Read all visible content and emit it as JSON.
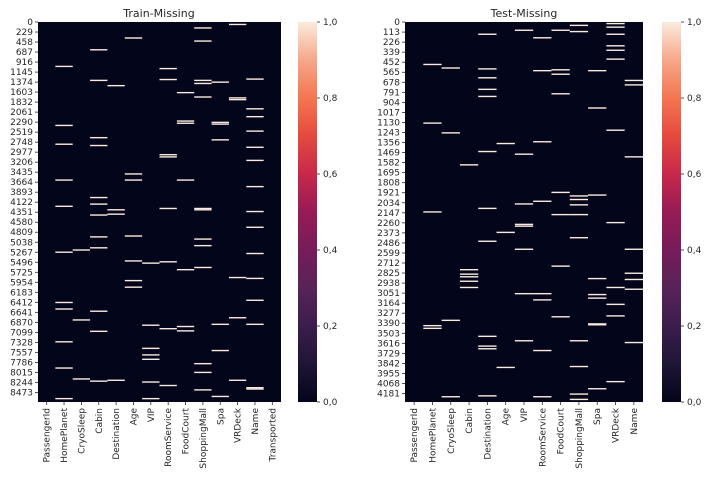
{
  "colors": {
    "missing_low": "#03051a",
    "missing_high": "#faebdd",
    "colormap": "rocket"
  },
  "chart_data": [
    {
      "type": "heatmap",
      "title": "Train-Missing",
      "xlabel": "",
      "ylabel": "",
      "value_range": [
        0,
        1
      ],
      "columns": [
        "PassengerId",
        "HomePlanet",
        "CryoSleep",
        "Cabin",
        "Destination",
        "Age",
        "VIP",
        "RoomService",
        "FoodCourt",
        "ShoppingMall",
        "Spa",
        "VRDeck",
        "Name",
        "Transported"
      ],
      "n_rows": 8693,
      "y_tick_labels": [
        "0",
        "229",
        "458",
        "687",
        "916",
        "1145",
        "1374",
        "1603",
        "1832",
        "2061",
        "2290",
        "2519",
        "2748",
        "2977",
        "3206",
        "3435",
        "3664",
        "3893",
        "4122",
        "4351",
        "4580",
        "4809",
        "5038",
        "5267",
        "5496",
        "5725",
        "5954",
        "6183",
        "6412",
        "6641",
        "6870",
        "7099",
        "7328",
        "7557",
        "7786",
        "8015",
        "8244",
        "8473"
      ],
      "colorbar_ticks": [
        "0,0",
        "0,2",
        "0,4",
        "0,6",
        "0,8",
        "1,0"
      ],
      "missing_rows": {
        "HomePlanet": [
          1000,
          2350,
          2780,
          3600,
          4200,
          5250,
          6400,
          6550,
          7300,
          7900,
          8600
        ],
        "CryoSleep": [
          5200,
          6800,
          8150
        ],
        "Cabin": [
          620,
          1320,
          2630,
          2810,
          4000,
          4150,
          4400,
          4900,
          5150,
          6600,
          7060,
          8200
        ],
        "Destination": [
          1440,
          4280,
          4380,
          8180
        ],
        "Age": [
          350,
          3460,
          3600,
          4880,
          5450,
          5900,
          6050
        ],
        "VIP": [
          5500,
          6920,
          7450,
          7600,
          7700,
          8220,
          8600
        ],
        "RoomService": [
          1050,
          1300,
          3020,
          3070,
          4250,
          5470,
          7000,
          8300
        ],
        "FoodCourt": [
          1600,
          2250,
          2300,
          3600,
          5650,
          6950,
          7050
        ],
        "ShoppingMall": [
          120,
          420,
          1320,
          1390,
          1700,
          4250,
          4280,
          4950,
          5100,
          5600,
          7800,
          8000,
          8400
        ],
        "Spa": [
          1360,
          2280,
          2320,
          2680,
          6900,
          7500,
          8550
        ],
        "VRDeck": [
          40,
          1720,
          1760,
          5830,
          6750,
          8180
        ],
        "Name": [
          1290,
          1970,
          2150,
          2480,
          2850,
          3150,
          3750,
          4320,
          4680,
          5280,
          5850,
          6350,
          6900,
          8350,
          8380
        ],
        "Transported": []
      }
    },
    {
      "type": "heatmap",
      "title": "Test-Missing",
      "xlabel": "",
      "ylabel": "",
      "value_range": [
        0,
        1
      ],
      "columns": [
        "PassengerId",
        "HomePlanet",
        "CryoSleep",
        "Cabin",
        "Destination",
        "Age",
        "VIP",
        "RoomService",
        "FoodCourt",
        "ShoppingMall",
        "Spa",
        "VRDeck",
        "Name"
      ],
      "n_rows": 4277,
      "y_tick_labels": [
        "0",
        "113",
        "226",
        "339",
        "452",
        "565",
        "678",
        "791",
        "904",
        "1017",
        "1130",
        "1243",
        "1356",
        "1469",
        "1582",
        "1695",
        "1808",
        "1921",
        "2034",
        "2147",
        "2260",
        "2373",
        "2486",
        "2599",
        "2712",
        "2825",
        "2938",
        "3051",
        "3164",
        "3277",
        "3390",
        "3503",
        "3616",
        "3729",
        "3842",
        "3955",
        "4068",
        "4181"
      ],
      "colorbar_ticks": [
        "0,0",
        "0,2",
        "0,4",
        "0,6",
        "0,8",
        "1,0"
      ],
      "missing_rows": {
        "HomePlanet": [
          470,
          1130,
          2130,
          3410,
          3440
        ],
        "CryoSleep": [
          510,
          1240,
          3350,
          4210
        ],
        "Cabin": [
          1600,
          2780,
          2830,
          2860,
          2910,
          2980
        ],
        "Destination": [
          130,
          520,
          620,
          750,
          830,
          1450,
          2090,
          2460,
          3530,
          3640,
          3670,
          4200
        ],
        "Age": [
          1360,
          2360,
          3880
        ],
        "VIP": [
          85,
          1480,
          2040,
          2270,
          2290,
          2550,
          3050,
          3580
        ],
        "RoomService": [
          170,
          540,
          1340,
          2010,
          3050,
          3120,
          3690,
          4210
        ],
        "FoodCourt": [
          85,
          530,
          580,
          800,
          1910,
          2160,
          2740,
          3310
        ],
        "ShoppingMall": [
          30,
          100,
          1950,
          1990,
          2050,
          2160,
          2420,
          3580,
          3870,
          4180,
          4240
        ],
        "Spa": [
          540,
          960,
          1940,
          2880,
          3060,
          3100,
          3390,
          3400,
          4120
        ],
        "VRDeck": [
          10,
          50,
          130,
          260,
          310,
          410,
          1210,
          2250,
          2980,
          3170,
          3300,
          4040
        ],
        "Name": [
          650,
          700,
          1510,
          2550,
          2820,
          2890,
          3000,
          3600
        ]
      }
    }
  ]
}
